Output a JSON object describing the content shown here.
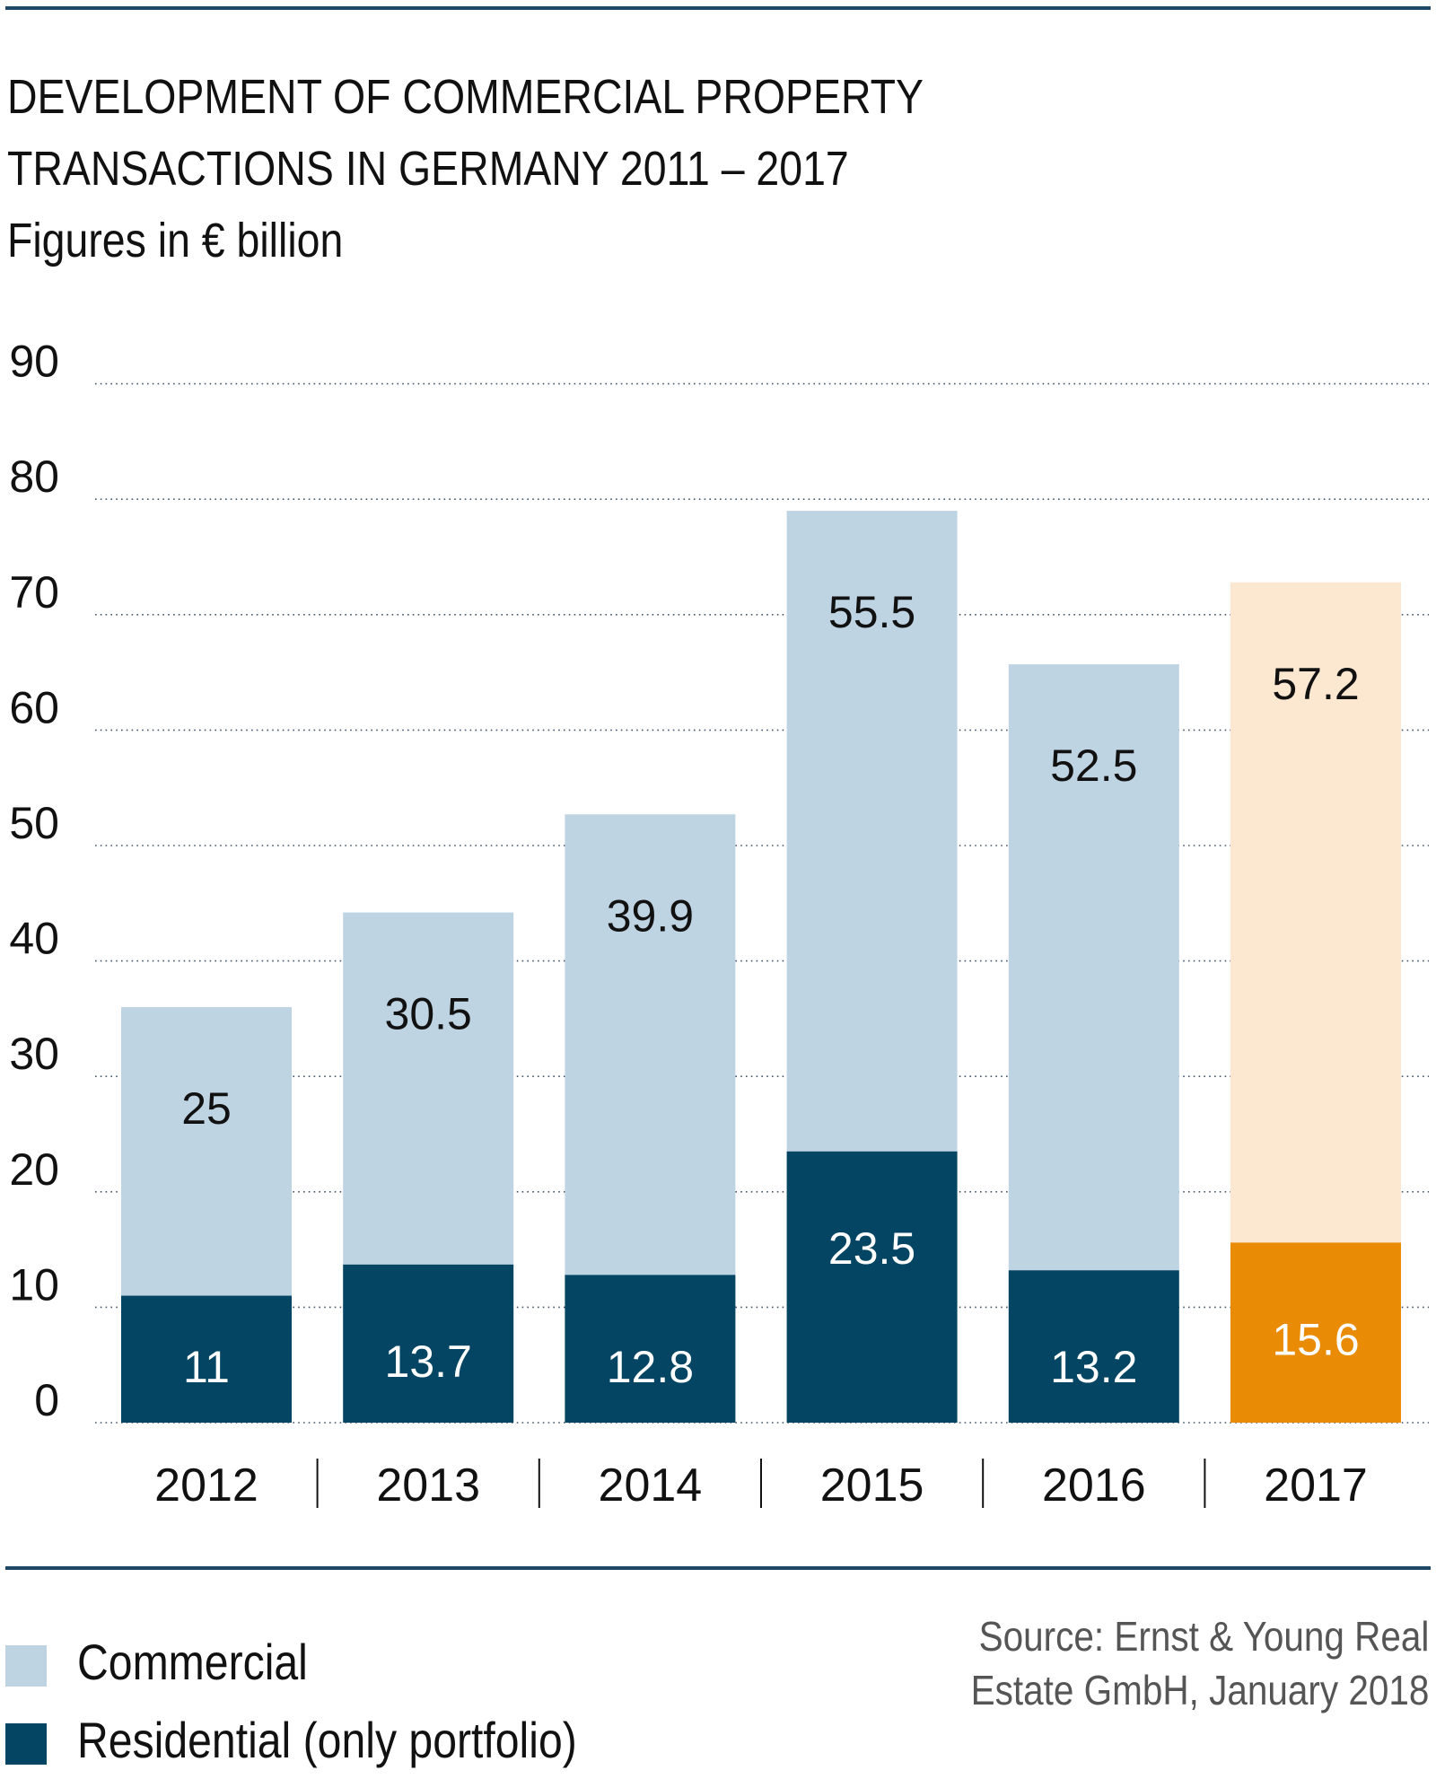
{
  "title": {
    "line1": "DEVELOPMENT OF COMMERCIAL PROPERTY",
    "line2": "TRANSACTIONS IN GERMANY 2011 – 2017",
    "subtitle": "Figures in € billion"
  },
  "colors": {
    "rule": "#1d4866",
    "commercial": "#bfd4e3",
    "residential": "#044563",
    "commercial_highlight": "#fce7d1",
    "residential_highlight": "#e98b05",
    "grid": "#44566a"
  },
  "chart_data": {
    "type": "bar",
    "stacked": true,
    "title": "DEVELOPMENT OF COMMERCIAL PROPERTY TRANSACTIONS IN GERMANY 2011 – 2017",
    "subtitle": "Figures in € billion",
    "xlabel": "",
    "ylabel": "",
    "categories": [
      "2012",
      "2013",
      "2014",
      "2015",
      "2016",
      "2017"
    ],
    "series": [
      {
        "name": "Residential (only portfolio)",
        "values": [
          11,
          13.7,
          12.8,
          23.5,
          13.2,
          15.6
        ],
        "labels": [
          "11",
          "13.7",
          "12.8",
          "23.5",
          "13.2",
          "15.6"
        ]
      },
      {
        "name": "Commercial",
        "values": [
          25,
          30.5,
          39.9,
          55.5,
          52.5,
          57.2
        ],
        "labels": [
          "25",
          "30.5",
          "39.9",
          "55.5",
          "52.5",
          "57.2"
        ]
      }
    ],
    "highlight_category": "2017",
    "ylim": [
      0,
      90
    ],
    "yticks": [
      0,
      10,
      20,
      30,
      40,
      50,
      60,
      70,
      80,
      90
    ],
    "ytick_labels": [
      "0",
      "10",
      "20",
      "30",
      "40",
      "50",
      "60",
      "70",
      "80",
      "90"
    ],
    "grid": true,
    "grid_style": "dotted",
    "legend_position": "bottom-left"
  },
  "legend": {
    "items": [
      {
        "label": "Commercial"
      },
      {
        "label": "Residential (only portfolio)"
      }
    ]
  },
  "source": {
    "line1": "Source: Ernst & Young Real",
    "line2": "Estate GmbH, January 2018"
  }
}
